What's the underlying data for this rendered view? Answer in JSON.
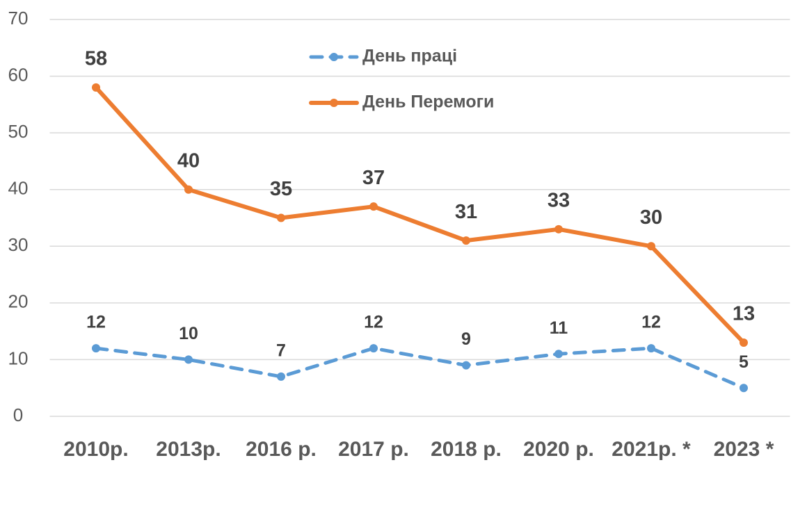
{
  "chart_data": {
    "type": "line",
    "categories": [
      "2010р.",
      "2013р.",
      "2016 р.",
      "2017 р.",
      "2018 р.",
      "2020 р.",
      "2021р. *",
      "2023 *"
    ],
    "series": [
      {
        "name": "День праці",
        "color": "#5b9bd5",
        "line_style": "dashed",
        "values": [
          12,
          10,
          7,
          12,
          9,
          11,
          12,
          5
        ]
      },
      {
        "name": "День Перемоги",
        "color": "#ed7d31",
        "line_style": "solid",
        "values": [
          58,
          40,
          35,
          37,
          31,
          33,
          30,
          13
        ]
      }
    ],
    "ylim": [
      0,
      70
    ],
    "yticks": [
      0,
      10,
      20,
      30,
      40,
      50,
      60,
      70
    ],
    "grid": true,
    "legend": "top"
  }
}
